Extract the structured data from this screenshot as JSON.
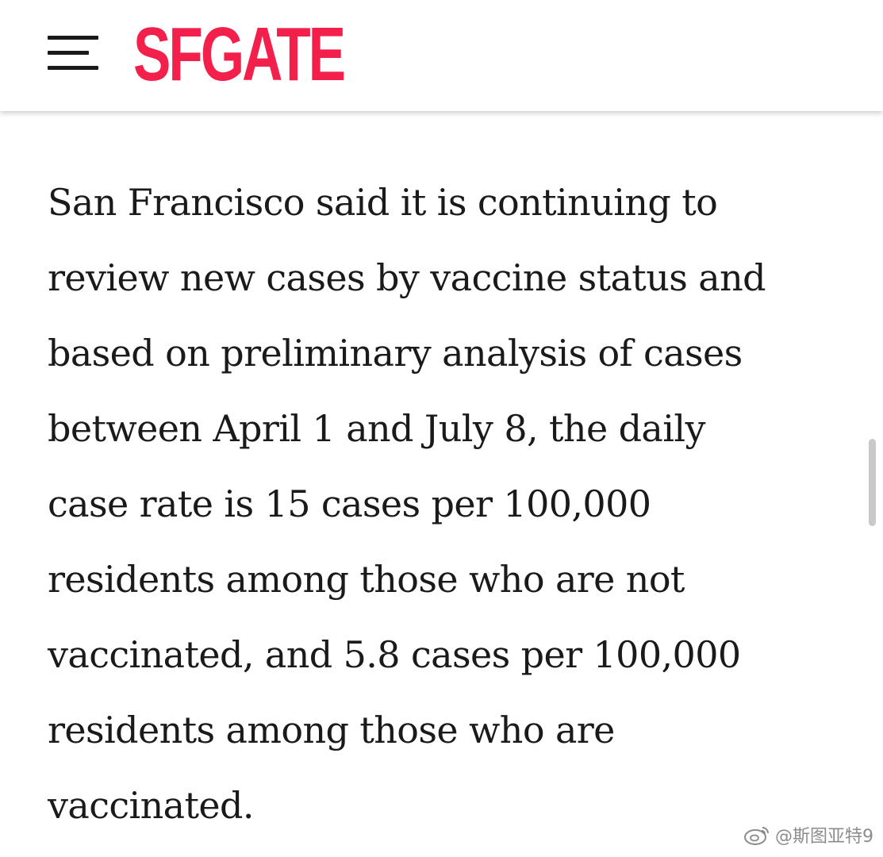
{
  "header": {
    "menu_icon": "hamburger-menu-icon",
    "logo_text": "SFGATE",
    "brand_color": "#f2204a"
  },
  "article": {
    "lines": [
      "San Francisco said it is continuing to",
      "review new cases by vaccine status and",
      "based on preliminary analysis of cases",
      "between April 1 and July 8, the daily",
      "case rate is 15 cases per 100,000",
      "residents among those who are not",
      "vaccinated, and 5.8 cases per 100,000",
      "residents among those who are",
      "vaccinated."
    ]
  },
  "watermark": {
    "icon": "weibo-icon",
    "text": "@斯图亚特9"
  }
}
